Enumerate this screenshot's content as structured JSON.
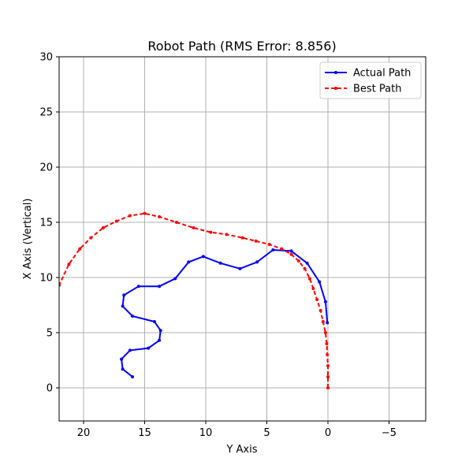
{
  "chart_data": {
    "type": "line",
    "title": "Robot Path (RMS Error: 8.856)",
    "xlabel": "Y Axis",
    "ylabel": "X Axis (Vertical)",
    "xlim": [
      22,
      -8
    ],
    "ylim": [
      -3,
      30
    ],
    "xticks": [
      20,
      15,
      10,
      5,
      0,
      -5
    ],
    "yticks": [
      0,
      5,
      10,
      15,
      20,
      25,
      30
    ],
    "xtick_labels": [
      "20",
      "15",
      "10",
      "5",
      "0",
      "−5"
    ],
    "ytick_labels": [
      "0",
      "5",
      "10",
      "15",
      "20",
      "25",
      "30"
    ],
    "grid": true,
    "legend_position": "top-right",
    "series": [
      {
        "name": "Actual Path",
        "color": "#0000ff",
        "style": "solid-dot",
        "x": [
          16.0,
          16.8,
          16.9,
          16.2,
          14.7,
          13.8,
          13.7,
          14.2,
          16.0,
          16.8,
          16.7,
          15.5,
          13.8,
          12.5,
          11.4,
          10.2,
          8.8,
          7.2,
          5.8,
          4.5,
          3.0,
          1.7,
          0.7,
          0.2,
          0.05
        ],
        "y": [
          1.0,
          1.7,
          2.6,
          3.4,
          3.6,
          4.3,
          5.2,
          6.0,
          6.5,
          7.4,
          8.4,
          9.2,
          9.2,
          9.9,
          11.4,
          11.9,
          11.3,
          10.8,
          11.4,
          12.5,
          12.4,
          11.3,
          9.6,
          7.8,
          5.9
        ]
      },
      {
        "name": "Best Path",
        "color": "#ff0000",
        "style": "dashed-dot",
        "x": [
          0.0,
          0.0,
          0.0,
          0.05,
          0.1,
          0.2,
          0.4,
          0.6,
          0.9,
          1.2,
          1.5,
          1.9,
          2.4,
          3.0,
          3.8,
          4.8,
          5.9,
          7.0,
          8.3,
          9.6,
          11.0,
          12.4,
          13.8,
          15.0,
          16.2,
          17.3,
          18.4,
          19.4,
          20.3,
          21.2,
          22.0
        ],
        "y": [
          0.0,
          1.0,
          2.0,
          3.0,
          4.0,
          5.0,
          6.0,
          7.0,
          8.0,
          9.0,
          9.9,
          10.8,
          11.5,
          12.1,
          12.6,
          13.0,
          13.3,
          13.6,
          13.9,
          14.1,
          14.5,
          15.0,
          15.5,
          15.8,
          15.6,
          15.1,
          14.5,
          13.6,
          12.6,
          11.2,
          9.3
        ]
      }
    ]
  }
}
